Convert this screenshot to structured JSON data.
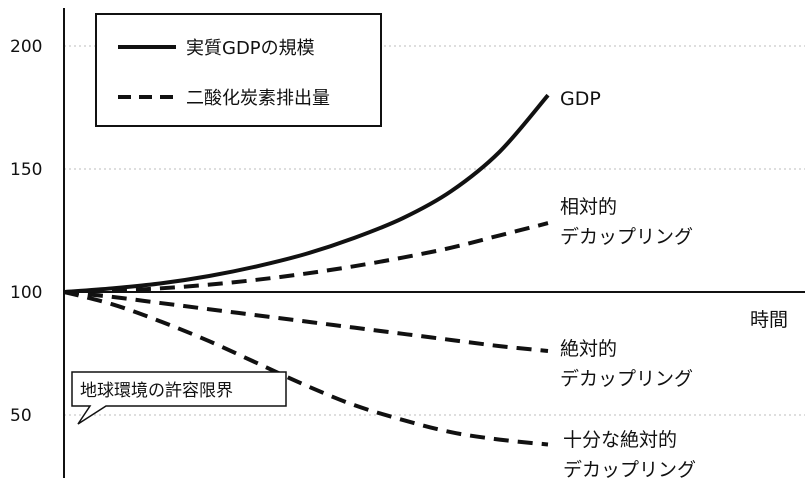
{
  "chart_data": {
    "type": "line",
    "xlabel": "時間",
    "ylabel": "",
    "ylim": [
      40,
      210
    ],
    "yticks": [
      50,
      100,
      150,
      200
    ],
    "grid": "horizontal dotted at y ticks",
    "x": [
      0,
      10,
      20,
      30,
      40,
      50,
      60,
      70,
      80,
      90,
      100
    ],
    "series": [
      {
        "name": "実質GDPの規模",
        "style": "solid",
        "values": [
          100,
          101.5,
          103.5,
          106.5,
          110.5,
          115.5,
          122,
          130,
          141,
          157,
          180
        ]
      },
      {
        "name": "二酸化炭素排出量",
        "style": "dashed",
        "values": [
          100,
          100.5,
          101.5,
          103,
          105,
          107.5,
          110.5,
          114,
          118,
          123,
          128
        ]
      },
      {
        "name": "二酸化炭素排出量",
        "style": "dashed",
        "values": [
          100,
          98,
          95.5,
          93,
          90.5,
          88,
          85.5,
          83,
          80.5,
          78,
          76
        ]
      },
      {
        "name": "二酸化炭素排出量",
        "style": "dashed",
        "values": [
          100,
          95,
          88,
          80,
          71,
          62,
          54,
          48,
          43,
          40,
          38
        ]
      }
    ],
    "line_labels": [
      [
        "GDP"
      ],
      [
        "相対的",
        "デカップリング"
      ],
      [
        "絶対的",
        "デカップリング"
      ],
      [
        "十分な絶対的",
        "デカップリング"
      ]
    ],
    "threshold": {
      "label": "地球環境の許容限界",
      "value": 50
    },
    "legend": {
      "placement": "top-left",
      "items": [
        {
          "label": "実質GDPの規模",
          "style": "solid"
        },
        {
          "label": "二酸化炭素排出量",
          "style": "dashed"
        }
      ]
    }
  }
}
